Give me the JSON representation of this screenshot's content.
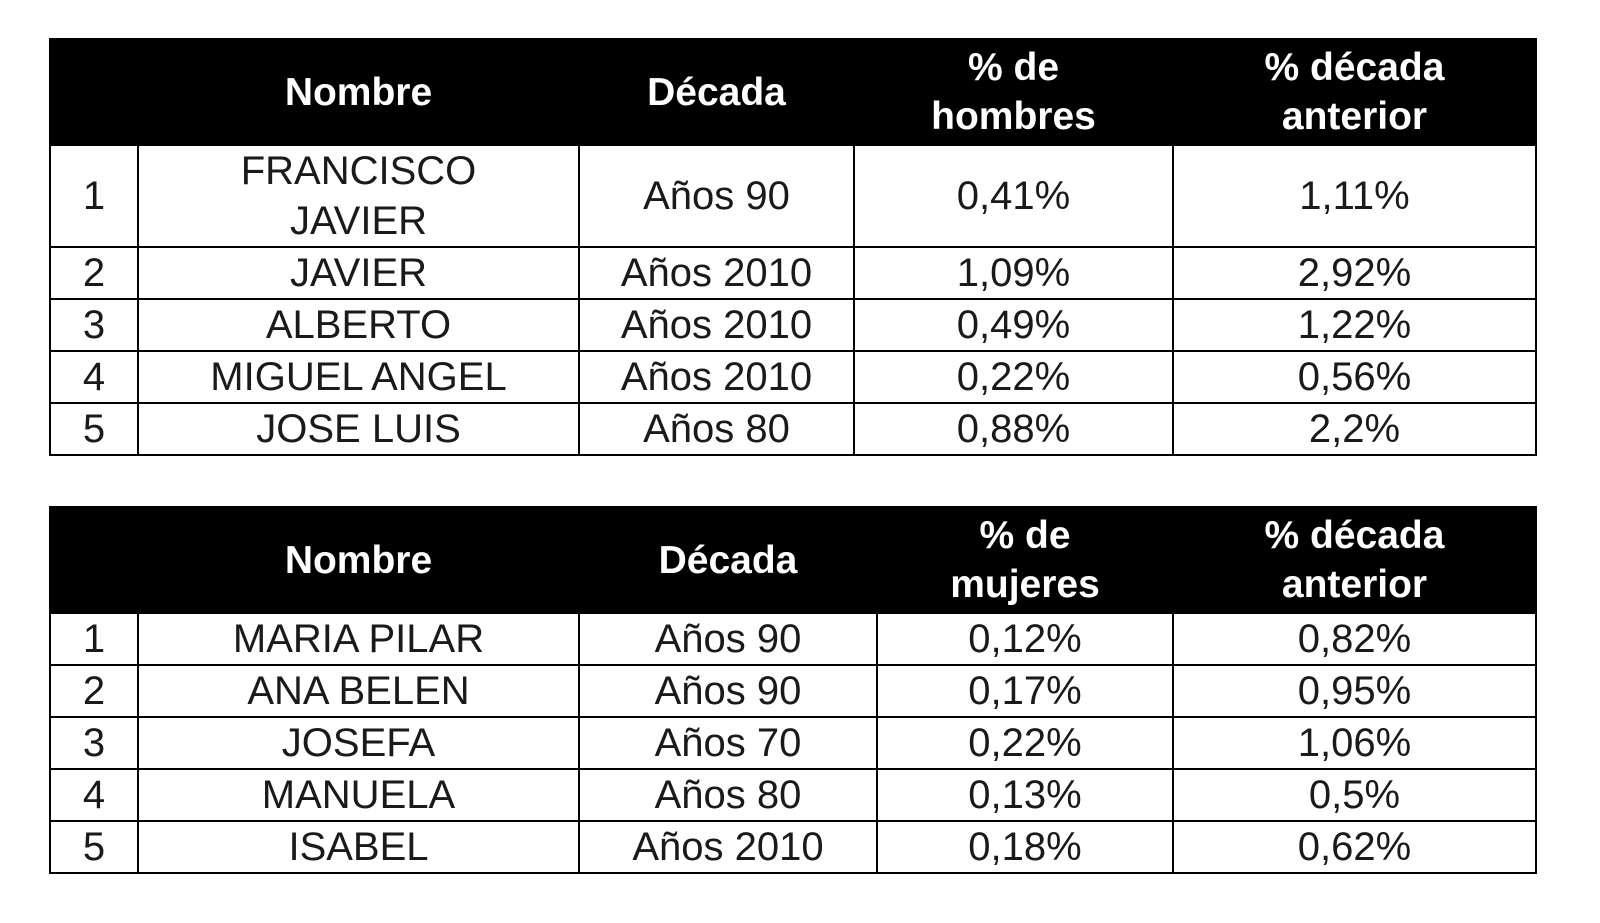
{
  "tables": [
    {
      "headers": {
        "rank": "",
        "name": "Nombre",
        "decade": "Década",
        "pct_line1": "% de",
        "pct_line2": "hombres",
        "prev_line1": "% década",
        "prev_line2": "anterior"
      },
      "rows": [
        {
          "rank": "1",
          "name_line1": "FRANCISCO",
          "name_line2": "JAVIER",
          "decade": "Años 90",
          "pct": "0,41%",
          "prev": "1,11%"
        },
        {
          "rank": "2",
          "name": "JAVIER",
          "decade": "Años 2010",
          "pct": "1,09%",
          "prev": "2,92%"
        },
        {
          "rank": "3",
          "name": "ALBERTO",
          "decade": "Años 2010",
          "pct": "0,49%",
          "prev": "1,22%"
        },
        {
          "rank": "4",
          "name": "MIGUEL ANGEL",
          "decade": "Años 2010",
          "pct": "0,22%",
          "prev": "0,56%"
        },
        {
          "rank": "5",
          "name": "JOSE LUIS",
          "decade": "Años 80",
          "pct": "0,88%",
          "prev": "2,2%"
        }
      ]
    },
    {
      "headers": {
        "rank": "",
        "name": "Nombre",
        "decade": "Década",
        "pct_line1": "% de",
        "pct_line2": "mujeres",
        "prev_line1": "% década",
        "prev_line2": "anterior"
      },
      "rows": [
        {
          "rank": "1",
          "name": "MARIA PILAR",
          "decade": "Años 90",
          "pct": "0,12%",
          "prev": "0,82%"
        },
        {
          "rank": "2",
          "name": "ANA BELEN",
          "decade": "Años 90",
          "pct": "0,17%",
          "prev": "0,95%"
        },
        {
          "rank": "3",
          "name": "JOSEFA",
          "decade": "Años 70",
          "pct": "0,22%",
          "prev": "1,06%"
        },
        {
          "rank": "4",
          "name": "MANUELA",
          "decade": "Años 80",
          "pct": "0,13%",
          "prev": "0,5%"
        },
        {
          "rank": "5",
          "name": "ISABEL",
          "decade": "Años 2010",
          "pct": "0,18%",
          "prev": "0,62%"
        }
      ]
    }
  ]
}
